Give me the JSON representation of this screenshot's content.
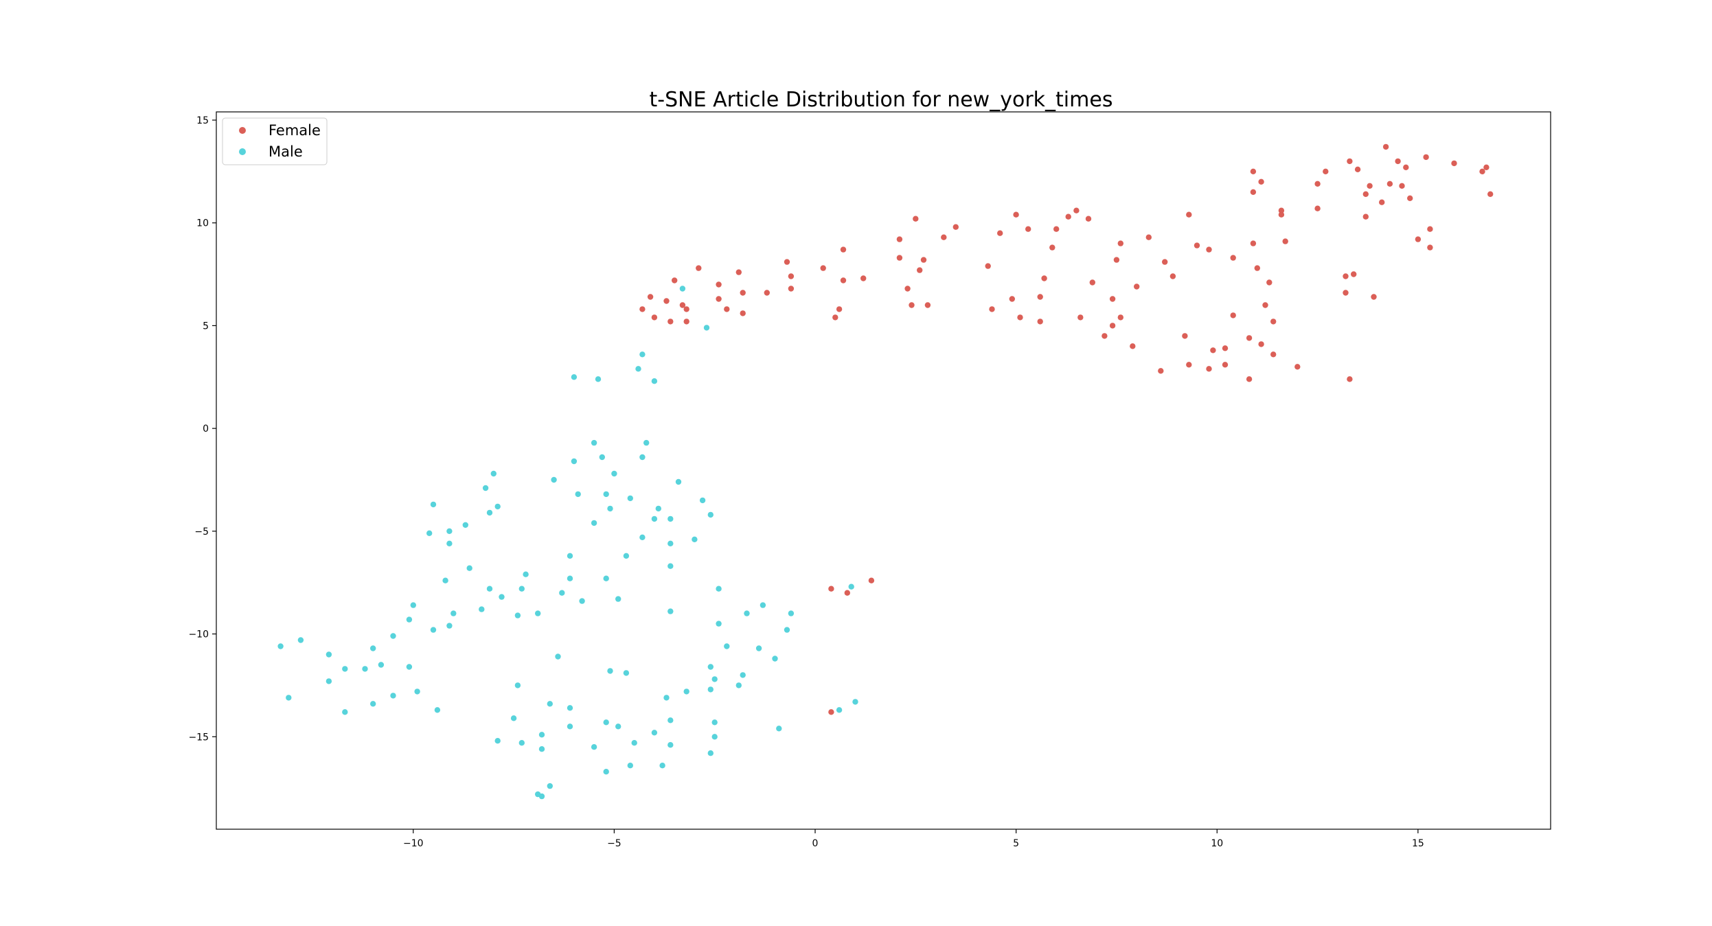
{
  "chart_data": {
    "type": "scatter",
    "title": "t-SNE Article Distribution for new_york_times",
    "xlabel": "",
    "ylabel": "",
    "xlim": [
      -14.9,
      18.3
    ],
    "ylim": [
      -19.5,
      15.4
    ],
    "x_ticks": [
      -10,
      -5,
      0,
      5,
      10,
      15
    ],
    "x_tick_labels": [
      "−10",
      "−5",
      "0",
      "5",
      "10",
      "15"
    ],
    "y_ticks": [
      -15,
      -10,
      -5,
      0,
      5,
      10,
      15
    ],
    "y_tick_labels": [
      "−15",
      "−10",
      "−5",
      "0",
      "5",
      "10",
      "15"
    ],
    "grid": false,
    "legend_position": "top-left",
    "series": [
      {
        "name": "Female",
        "color": "#db5f57",
        "points": [
          [
            -4.3,
            5.8
          ],
          [
            -4.1,
            6.4
          ],
          [
            -4.0,
            5.4
          ],
          [
            -3.7,
            6.2
          ],
          [
            -3.6,
            5.2
          ],
          [
            -3.5,
            7.2
          ],
          [
            -3.3,
            6.0
          ],
          [
            -3.2,
            5.8
          ],
          [
            -3.2,
            5.2
          ],
          [
            -2.9,
            7.8
          ],
          [
            -2.4,
            7.0
          ],
          [
            -2.4,
            6.3
          ],
          [
            -2.2,
            5.8
          ],
          [
            -1.9,
            7.6
          ],
          [
            -1.8,
            6.6
          ],
          [
            -1.8,
            5.6
          ],
          [
            -1.2,
            6.6
          ],
          [
            -0.7,
            8.1
          ],
          [
            -0.6,
            7.4
          ],
          [
            -0.6,
            6.8
          ],
          [
            0.2,
            7.8
          ],
          [
            0.5,
            5.4
          ],
          [
            0.6,
            5.8
          ],
          [
            0.7,
            7.2
          ],
          [
            0.7,
            8.7
          ],
          [
            1.2,
            7.3
          ],
          [
            2.1,
            9.2
          ],
          [
            2.1,
            8.3
          ],
          [
            2.3,
            6.8
          ],
          [
            2.4,
            6.0
          ],
          [
            2.5,
            10.2
          ],
          [
            2.6,
            7.7
          ],
          [
            2.7,
            8.2
          ],
          [
            2.8,
            6.0
          ],
          [
            3.2,
            9.3
          ],
          [
            3.5,
            9.8
          ],
          [
            4.3,
            7.9
          ],
          [
            4.4,
            5.8
          ],
          [
            4.6,
            9.5
          ],
          [
            4.9,
            6.3
          ],
          [
            5.0,
            10.4
          ],
          [
            5.1,
            5.4
          ],
          [
            5.3,
            9.7
          ],
          [
            5.6,
            6.4
          ],
          [
            5.6,
            5.2
          ],
          [
            5.7,
            7.3
          ],
          [
            5.9,
            8.8
          ],
          [
            6.0,
            9.7
          ],
          [
            6.3,
            10.3
          ],
          [
            6.5,
            10.6
          ],
          [
            6.6,
            5.4
          ],
          [
            6.8,
            10.2
          ],
          [
            6.9,
            7.1
          ],
          [
            7.2,
            4.5
          ],
          [
            7.4,
            6.3
          ],
          [
            7.4,
            5.0
          ],
          [
            7.5,
            8.2
          ],
          [
            7.6,
            9.0
          ],
          [
            7.6,
            5.4
          ],
          [
            7.9,
            4.0
          ],
          [
            8.0,
            6.9
          ],
          [
            8.3,
            9.3
          ],
          [
            8.6,
            2.8
          ],
          [
            8.7,
            8.1
          ],
          [
            8.9,
            7.4
          ],
          [
            9.2,
            4.5
          ],
          [
            9.3,
            3.1
          ],
          [
            9.3,
            10.4
          ],
          [
            9.5,
            8.9
          ],
          [
            9.8,
            8.7
          ],
          [
            9.8,
            2.9
          ],
          [
            9.9,
            3.8
          ],
          [
            10.2,
            3.9
          ],
          [
            10.2,
            3.1
          ],
          [
            10.4,
            8.3
          ],
          [
            10.4,
            5.5
          ],
          [
            10.8,
            4.4
          ],
          [
            10.8,
            2.4
          ],
          [
            10.9,
            11.5
          ],
          [
            10.9,
            12.5
          ],
          [
            10.9,
            9.0
          ],
          [
            11.0,
            7.8
          ],
          [
            11.1,
            4.1
          ],
          [
            11.1,
            12.0
          ],
          [
            11.2,
            6.0
          ],
          [
            11.3,
            7.1
          ],
          [
            11.4,
            3.6
          ],
          [
            11.4,
            5.2
          ],
          [
            11.6,
            10.6
          ],
          [
            11.6,
            10.4
          ],
          [
            11.7,
            9.1
          ],
          [
            12.0,
            3.0
          ],
          [
            12.5,
            11.9
          ],
          [
            12.5,
            10.7
          ],
          [
            12.7,
            12.5
          ],
          [
            13.2,
            7.4
          ],
          [
            13.2,
            6.6
          ],
          [
            13.3,
            2.4
          ],
          [
            13.3,
            13.0
          ],
          [
            13.4,
            7.5
          ],
          [
            13.5,
            12.6
          ],
          [
            13.7,
            11.4
          ],
          [
            13.7,
            10.3
          ],
          [
            13.8,
            11.8
          ],
          [
            13.9,
            6.4
          ],
          [
            14.1,
            11.0
          ],
          [
            14.2,
            13.7
          ],
          [
            14.3,
            11.9
          ],
          [
            14.5,
            13.0
          ],
          [
            14.6,
            11.8
          ],
          [
            14.7,
            12.7
          ],
          [
            14.8,
            11.2
          ],
          [
            15.0,
            9.2
          ],
          [
            15.2,
            13.2
          ],
          [
            15.3,
            9.7
          ],
          [
            15.3,
            8.8
          ],
          [
            15.9,
            12.9
          ],
          [
            16.6,
            12.5
          ],
          [
            16.7,
            12.7
          ],
          [
            16.8,
            11.4
          ],
          [
            0.4,
            -7.8
          ],
          [
            0.8,
            -8.0
          ],
          [
            1.4,
            -7.4
          ],
          [
            0.4,
            -13.8
          ]
        ]
      },
      {
        "name": "Male",
        "color": "#57d3db",
        "points": [
          [
            -3.3,
            6.8
          ],
          [
            -2.7,
            4.9
          ],
          [
            -6.0,
            2.5
          ],
          [
            -5.4,
            2.4
          ],
          [
            -4.4,
            2.9
          ],
          [
            -4.3,
            3.6
          ],
          [
            -4.0,
            2.3
          ],
          [
            -5.5,
            -0.7
          ],
          [
            -4.2,
            -0.7
          ],
          [
            -5.3,
            -1.4
          ],
          [
            -4.3,
            -1.4
          ],
          [
            -6.0,
            -1.6
          ],
          [
            -8.0,
            -2.2
          ],
          [
            -8.2,
            -2.9
          ],
          [
            -6.5,
            -2.5
          ],
          [
            -5.0,
            -2.2
          ],
          [
            -3.4,
            -2.6
          ],
          [
            -5.9,
            -3.2
          ],
          [
            -5.2,
            -3.2
          ],
          [
            -4.6,
            -3.4
          ],
          [
            -2.8,
            -3.5
          ],
          [
            -9.5,
            -3.7
          ],
          [
            -7.9,
            -3.8
          ],
          [
            -8.1,
            -4.1
          ],
          [
            -5.1,
            -3.9
          ],
          [
            -3.9,
            -3.9
          ],
          [
            -4.0,
            -4.4
          ],
          [
            -2.6,
            -4.2
          ],
          [
            -8.7,
            -4.7
          ],
          [
            -9.6,
            -5.1
          ],
          [
            -9.1,
            -5.0
          ],
          [
            -9.1,
            -5.6
          ],
          [
            -5.5,
            -4.6
          ],
          [
            -4.3,
            -5.3
          ],
          [
            -3.6,
            -5.6
          ],
          [
            -3.0,
            -5.4
          ],
          [
            -3.6,
            -4.4
          ],
          [
            -6.1,
            -6.2
          ],
          [
            -4.7,
            -6.2
          ],
          [
            -8.6,
            -6.8
          ],
          [
            -3.6,
            -6.7
          ],
          [
            -7.2,
            -7.1
          ],
          [
            -9.2,
            -7.4
          ],
          [
            -6.1,
            -7.3
          ],
          [
            -5.2,
            -7.3
          ],
          [
            -8.1,
            -7.8
          ],
          [
            -7.3,
            -7.8
          ],
          [
            -6.3,
            -8.0
          ],
          [
            -2.4,
            -7.8
          ],
          [
            -7.8,
            -8.2
          ],
          [
            -5.8,
            -8.4
          ],
          [
            -4.9,
            -8.3
          ],
          [
            -10.0,
            -8.6
          ],
          [
            -8.3,
            -8.8
          ],
          [
            -7.4,
            -9.1
          ],
          [
            -6.9,
            -9.0
          ],
          [
            -3.6,
            -8.9
          ],
          [
            -1.7,
            -9.0
          ],
          [
            -1.3,
            -8.6
          ],
          [
            -0.6,
            -9.0
          ],
          [
            -10.1,
            -9.3
          ],
          [
            -9.0,
            -9.0
          ],
          [
            -2.4,
            -9.5
          ],
          [
            -9.1,
            -9.6
          ],
          [
            -9.5,
            -9.8
          ],
          [
            -0.7,
            -9.8
          ],
          [
            -10.5,
            -10.1
          ],
          [
            -13.3,
            -10.6
          ],
          [
            -12.8,
            -10.3
          ],
          [
            -11.0,
            -10.7
          ],
          [
            -2.2,
            -10.6
          ],
          [
            -1.4,
            -10.7
          ],
          [
            -12.1,
            -11.0
          ],
          [
            -6.4,
            -11.1
          ],
          [
            -1.0,
            -11.2
          ],
          [
            -11.7,
            -11.7
          ],
          [
            -11.2,
            -11.7
          ],
          [
            -10.8,
            -11.5
          ],
          [
            -10.1,
            -11.6
          ],
          [
            -5.1,
            -11.8
          ],
          [
            -4.7,
            -11.9
          ],
          [
            -2.6,
            -11.6
          ],
          [
            -1.8,
            -12.0
          ],
          [
            -2.5,
            -12.2
          ],
          [
            -12.1,
            -12.3
          ],
          [
            -7.4,
            -12.5
          ],
          [
            -1.9,
            -12.5
          ],
          [
            -9.9,
            -12.8
          ],
          [
            -3.2,
            -12.8
          ],
          [
            -2.6,
            -12.7
          ],
          [
            -13.1,
            -13.1
          ],
          [
            -10.5,
            -13.0
          ],
          [
            -3.7,
            -13.1
          ],
          [
            -11.0,
            -13.4
          ],
          [
            -6.6,
            -13.4
          ],
          [
            -6.1,
            -13.6
          ],
          [
            -9.4,
            -13.7
          ],
          [
            -11.7,
            -13.8
          ],
          [
            1.0,
            -13.3
          ],
          [
            0.6,
            -13.7
          ],
          [
            -7.5,
            -14.1
          ],
          [
            -3.6,
            -14.2
          ],
          [
            -2.5,
            -14.3
          ],
          [
            -6.1,
            -14.5
          ],
          [
            -5.2,
            -14.3
          ],
          [
            -4.9,
            -14.5
          ],
          [
            -0.9,
            -14.6
          ],
          [
            -6.8,
            -14.9
          ],
          [
            -4.0,
            -14.8
          ],
          [
            -2.5,
            -15.0
          ],
          [
            -7.9,
            -15.2
          ],
          [
            -7.3,
            -15.3
          ],
          [
            -6.8,
            -15.6
          ],
          [
            -5.5,
            -15.5
          ],
          [
            -4.5,
            -15.3
          ],
          [
            -3.6,
            -15.4
          ],
          [
            -2.6,
            -15.8
          ],
          [
            -5.2,
            -16.7
          ],
          [
            -4.6,
            -16.4
          ],
          [
            -3.8,
            -16.4
          ],
          [
            -6.6,
            -17.4
          ],
          [
            -6.9,
            -17.8
          ],
          [
            -6.8,
            -17.9
          ],
          [
            0.9,
            -7.7
          ]
        ]
      }
    ]
  }
}
